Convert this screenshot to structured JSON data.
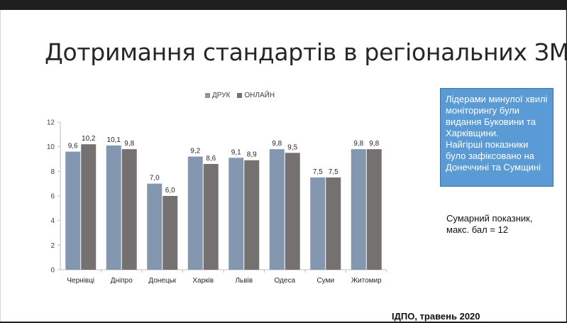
{
  "slide": {
    "title": "Дотримання стандартів в регіональних ЗМІ",
    "note_lines": [
      "Лідерами минулої хвилі моніторингу були видання Буковини та Харківщини.",
      "Найгірші показники було зафіксовано на Донеччині та Сумщині"
    ],
    "summary_lines": [
      "Сумарний показник,",
      "макс. бал = 12"
    ],
    "source": "ІДПО, травень 2020"
  },
  "colors": {
    "print": "#8497b0",
    "online": "#767171",
    "note_bg": "#5b9bd5"
  },
  "chart_data": {
    "type": "bar",
    "title": "",
    "xlabel": "",
    "ylabel": "",
    "categories": [
      "Чернівці",
      "Дніпро",
      "Донецьк",
      "Харків",
      "Львів",
      "Одеса",
      "Суми",
      "Житомир"
    ],
    "series": [
      {
        "name": "ДРУК",
        "values": [
          9.6,
          10.1,
          7.0,
          9.2,
          9.1,
          9.8,
          7.5,
          9.8
        ],
        "labels": [
          "9,6",
          "10,1",
          "7,0",
          "9,2",
          "9,1",
          "9,8",
          "7,5",
          "9,8"
        ]
      },
      {
        "name": "ОНЛАЙН",
        "values": [
          10.2,
          9.8,
          6.0,
          8.6,
          8.9,
          9.5,
          7.5,
          9.8
        ],
        "labels": [
          "10,2",
          "9,8",
          "6,0",
          "8,6",
          "8,9",
          "9,5",
          "7,5",
          "9,8"
        ]
      }
    ],
    "ylim": [
      0,
      12
    ],
    "yticks": [
      0,
      2,
      4,
      6,
      8,
      10,
      12
    ],
    "grid": false,
    "legend": "top-center"
  }
}
